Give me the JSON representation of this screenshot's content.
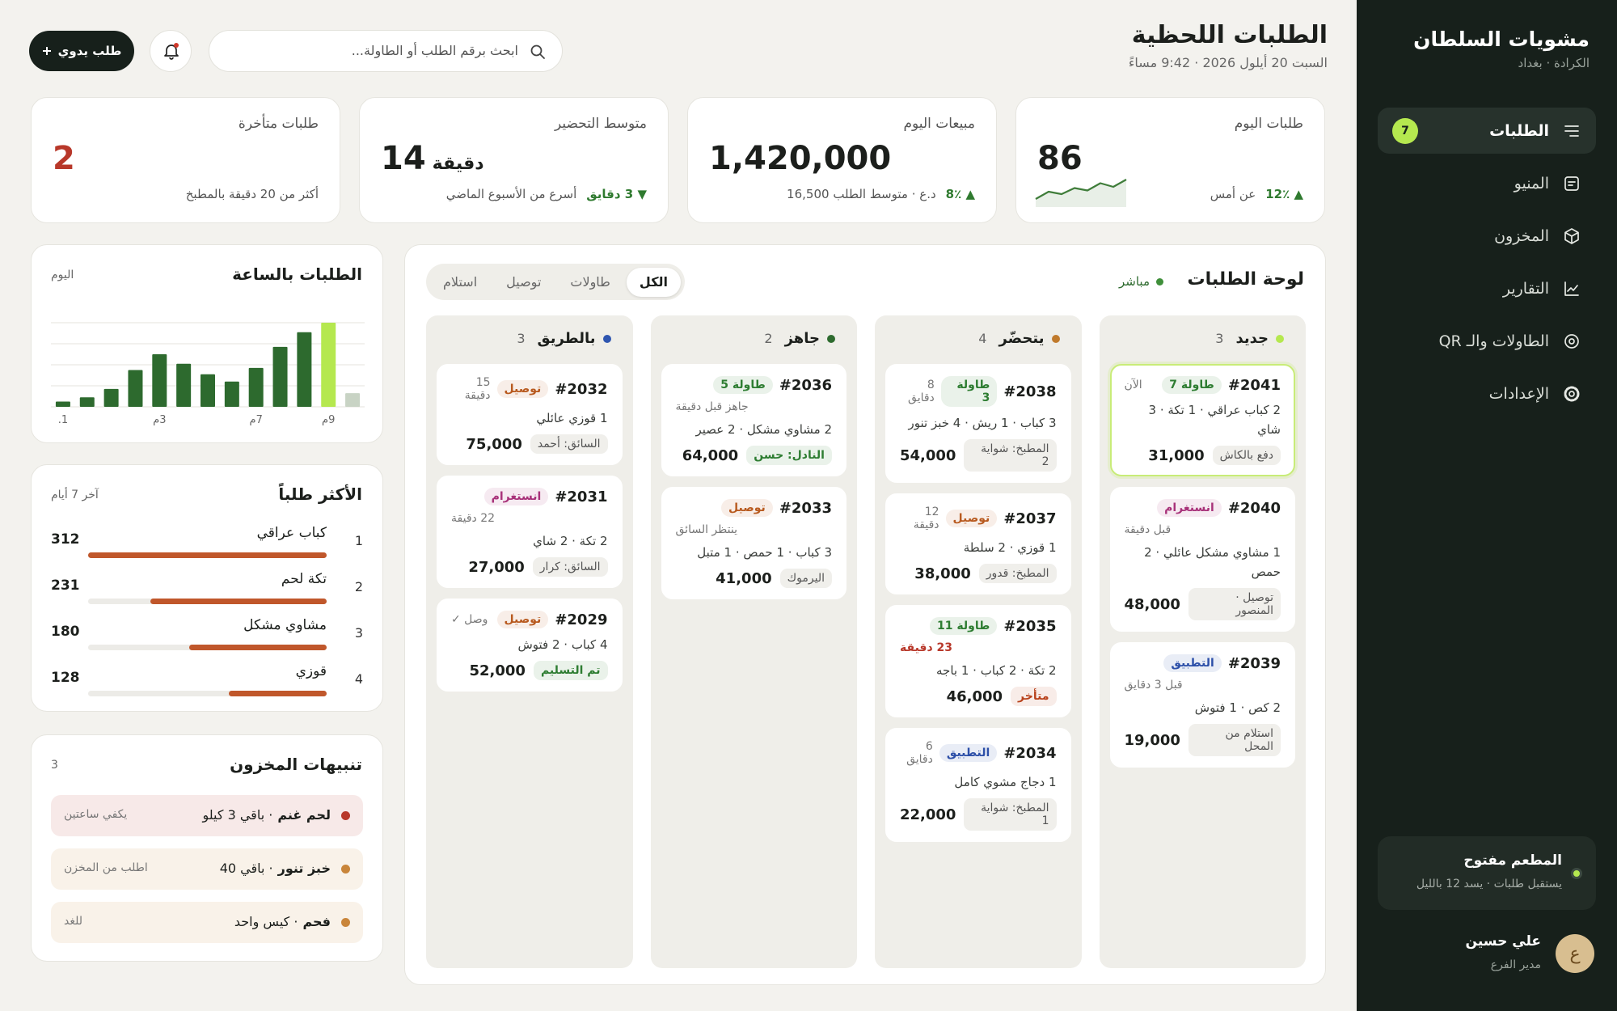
{
  "sidebar": {
    "brand": "مشويات السلطان",
    "location": "الكرادة · بغداد",
    "nav": [
      {
        "label": "الطلبات",
        "badge": 7,
        "active": true
      },
      {
        "label": "المنيو"
      },
      {
        "label": "المخزون"
      },
      {
        "label": "التقارير"
      },
      {
        "label": "الطاولات والـ QR"
      },
      {
        "label": "الإعدادات"
      }
    ],
    "status": {
      "title": "المطعم مفتوح",
      "note": "يستقبل طلبات · يسد 12 بالليل"
    },
    "user": {
      "initial": "ع",
      "name": "علي حسين",
      "role": "مدير الفرع"
    }
  },
  "header": {
    "title": "الطلبات اللحظية",
    "datetime": "السبت 20 أيلول 2026 · 9:42 مساءً",
    "search_placeholder": "ابحث برقم الطلب أو الطاولة...",
    "new_order": "طلب يدوي"
  },
  "kpis": [
    {
      "label": "طلبات اليوم",
      "value": "86",
      "delta": "▲ 12٪",
      "note": "عن أمس",
      "trend": [
        3,
        9,
        7,
        12,
        10,
        16,
        13,
        19
      ],
      "trend_color": "#3f7d3a"
    },
    {
      "label": "مبيعات اليوم",
      "value": "1,420,000",
      "delta": "▲ 8٪",
      "note": "د.ع · متوسط الطلب 16,500"
    },
    {
      "label": "متوسط التحضير",
      "value": "14",
      "unit": "دقيقة",
      "delta": "▼ 3 دقايق",
      "note": "أسرع من الأسبوع الماضي"
    },
    {
      "label": "طلبات متأخرة",
      "value": "2",
      "value_color": "#b8382a",
      "note": "أكثر من 20 دقيقة بالمطبخ"
    }
  ],
  "hourly": {
    "title": "الطلبات بالساعة",
    "period": "اليوم",
    "categories": [
      "1.",
      null,
      null,
      null,
      "3م",
      null,
      null,
      null,
      "7م",
      null,
      null,
      "9م",
      null
    ],
    "values": [
      5,
      9,
      17,
      35,
      50,
      41,
      31,
      24,
      37,
      57,
      71,
      80,
      13
    ],
    "colors": [
      "#2d6a2e",
      "#2d6a2e",
      "#2d6a2e",
      "#2d6a2e",
      "#2d6a2e",
      "#2d6a2e",
      "#2d6a2e",
      "#2d6a2e",
      "#2d6a2e",
      "#2d6a2e",
      "#2d6a2e",
      "#b5e84f",
      "#c8d3c4"
    ],
    "ylim": [
      0,
      80
    ],
    "yticks": [
      0,
      20,
      40,
      60,
      80
    ]
  },
  "top_dishes": {
    "title": "الأكثر طلباً",
    "period": "آخر 7 أيام",
    "color": "#c0572b",
    "items": [
      {
        "rank": 1,
        "name": "كباب عراقي",
        "count": 312
      },
      {
        "rank": 2,
        "name": "تكة لحم",
        "count": 231
      },
      {
        "rank": 3,
        "name": "مشاوي مشكل",
        "count": 180
      },
      {
        "rank": 4,
        "name": "قوزي",
        "count": 128
      }
    ]
  },
  "stock": {
    "title": "تنبيهات المخزون",
    "count": 3,
    "alerts": [
      {
        "item": "لحم غنم",
        "detail": "· باقي 3 كيلو",
        "action": "يكفي ساعتين",
        "color": "#b8382a"
      },
      {
        "item": "خبز تنور",
        "detail": "· باقي 40",
        "action": "اطلب من المخزن",
        "color": "#c9853a"
      },
      {
        "item": "فحم",
        "detail": "· كيس واحد",
        "action": "للغد",
        "color": "#c9853a"
      }
    ]
  },
  "board": {
    "title": "لوحة الطلبات",
    "live": "مباشر",
    "tabs": [
      {
        "label": "الكل",
        "active": true
      },
      {
        "label": "طاولات"
      },
      {
        "label": "توصيل"
      },
      {
        "label": "استلام"
      }
    ],
    "columns": [
      {
        "name": "جديد",
        "count": 3,
        "color": "#b5e84f",
        "cards": [
          {
            "id": "#2041",
            "tag": "طاولة 7",
            "tag_color": "#2e7d32",
            "meta": "الآن",
            "items": "2 كباب عراقي · 1 تكة · 3 شاي",
            "price": "31,000",
            "chip": "دفع بالكاش",
            "highlight": true
          },
          {
            "id": "#2040",
            "tag": "انستغرام",
            "tag_color": "#a8327a",
            "note": "قبل دقيقة",
            "items": "1 مشاوي مشكل عائلي · 2 حمص",
            "price": "48,000",
            "chip": "توصيل · المنصور"
          },
          {
            "id": "#2039",
            "tag": "التطبيق",
            "tag_color": "#2c4fa8",
            "note": "قبل 3 دقايق",
            "items": "2 كص · 1 فتوش",
            "price": "19,000",
            "chip": "استلام من المحل"
          }
        ]
      },
      {
        "name": "يتحضّر",
        "count": 4,
        "color": "#c07a2c",
        "cards": [
          {
            "id": "#2038",
            "tag": "طاولة 3",
            "tag_color": "#2e7d32",
            "meta": "8 دقايق",
            "items": "3 كباب · 1 ريش · 4 خبز تنور",
            "price": "54,000",
            "chip": "المطبخ: شواية 2"
          },
          {
            "id": "#2037",
            "tag": "توصيل",
            "tag_color": "#b85a1f",
            "meta": "12 دقيقة",
            "items": "1 قوزي · 2 سلطة",
            "price": "38,000",
            "chip": "المطبخ: قدور"
          },
          {
            "id": "#2035",
            "tag": "طاولة 11",
            "tag_color": "#2e7d32",
            "note": "23 دقيقة",
            "note_color": "#b8382a",
            "items": "2 تكة · 2 كباب · 1 باجه",
            "price": "46,000",
            "chip": "متأخر",
            "chip_color": "#b8421c"
          },
          {
            "id": "#2034",
            "tag": "التطبيق",
            "tag_color": "#2c4fa8",
            "meta": "6 دقايق",
            "items": "1 دجاج مشوي كامل",
            "price": "22,000",
            "chip": "المطبخ: شواية 1"
          }
        ]
      },
      {
        "name": "جاهز",
        "count": 2,
        "color": "#2e6b2f",
        "cards": [
          {
            "id": "#2036",
            "tag": "طاولة 5",
            "tag_color": "#2e7d32",
            "note": "جاهز قبل دقيقة",
            "items": "2 مشاوي مشكل · 2 عصير",
            "price": "64,000",
            "chip": "النادل: حسن",
            "chip_color": "#2e7d32"
          },
          {
            "id": "#2033",
            "tag": "توصيل",
            "tag_color": "#b85a1f",
            "note": "ينتظر السائق",
            "items": "3 كباب · 1 حمص · 1 متبل",
            "price": "41,000",
            "chip": "اليرموك"
          }
        ]
      },
      {
        "name": "بالطريق",
        "count": 3,
        "color": "#2f56b0",
        "cards": [
          {
            "id": "#2032",
            "tag": "توصيل",
            "tag_color": "#b85a1f",
            "meta": "15 دقيقة",
            "items": "1 قوزي عائلي",
            "price": "75,000",
            "chip": "السائق: أحمد"
          },
          {
            "id": "#2031",
            "tag": "انستغرام",
            "tag_color": "#a8327a",
            "note": "22 دقيقة",
            "items": "2 تكة · 2 شاي",
            "price": "27,000",
            "chip": "السائق: كرار"
          },
          {
            "id": "#2029",
            "tag": "توصيل",
            "tag_color": "#b85a1f",
            "meta": "وصل ✓",
            "items": "4 كباب · 2 فتوش",
            "price": "52,000",
            "chip": "تم التسليم",
            "chip_color": "#2e7d32"
          }
        ]
      }
    ]
  }
}
